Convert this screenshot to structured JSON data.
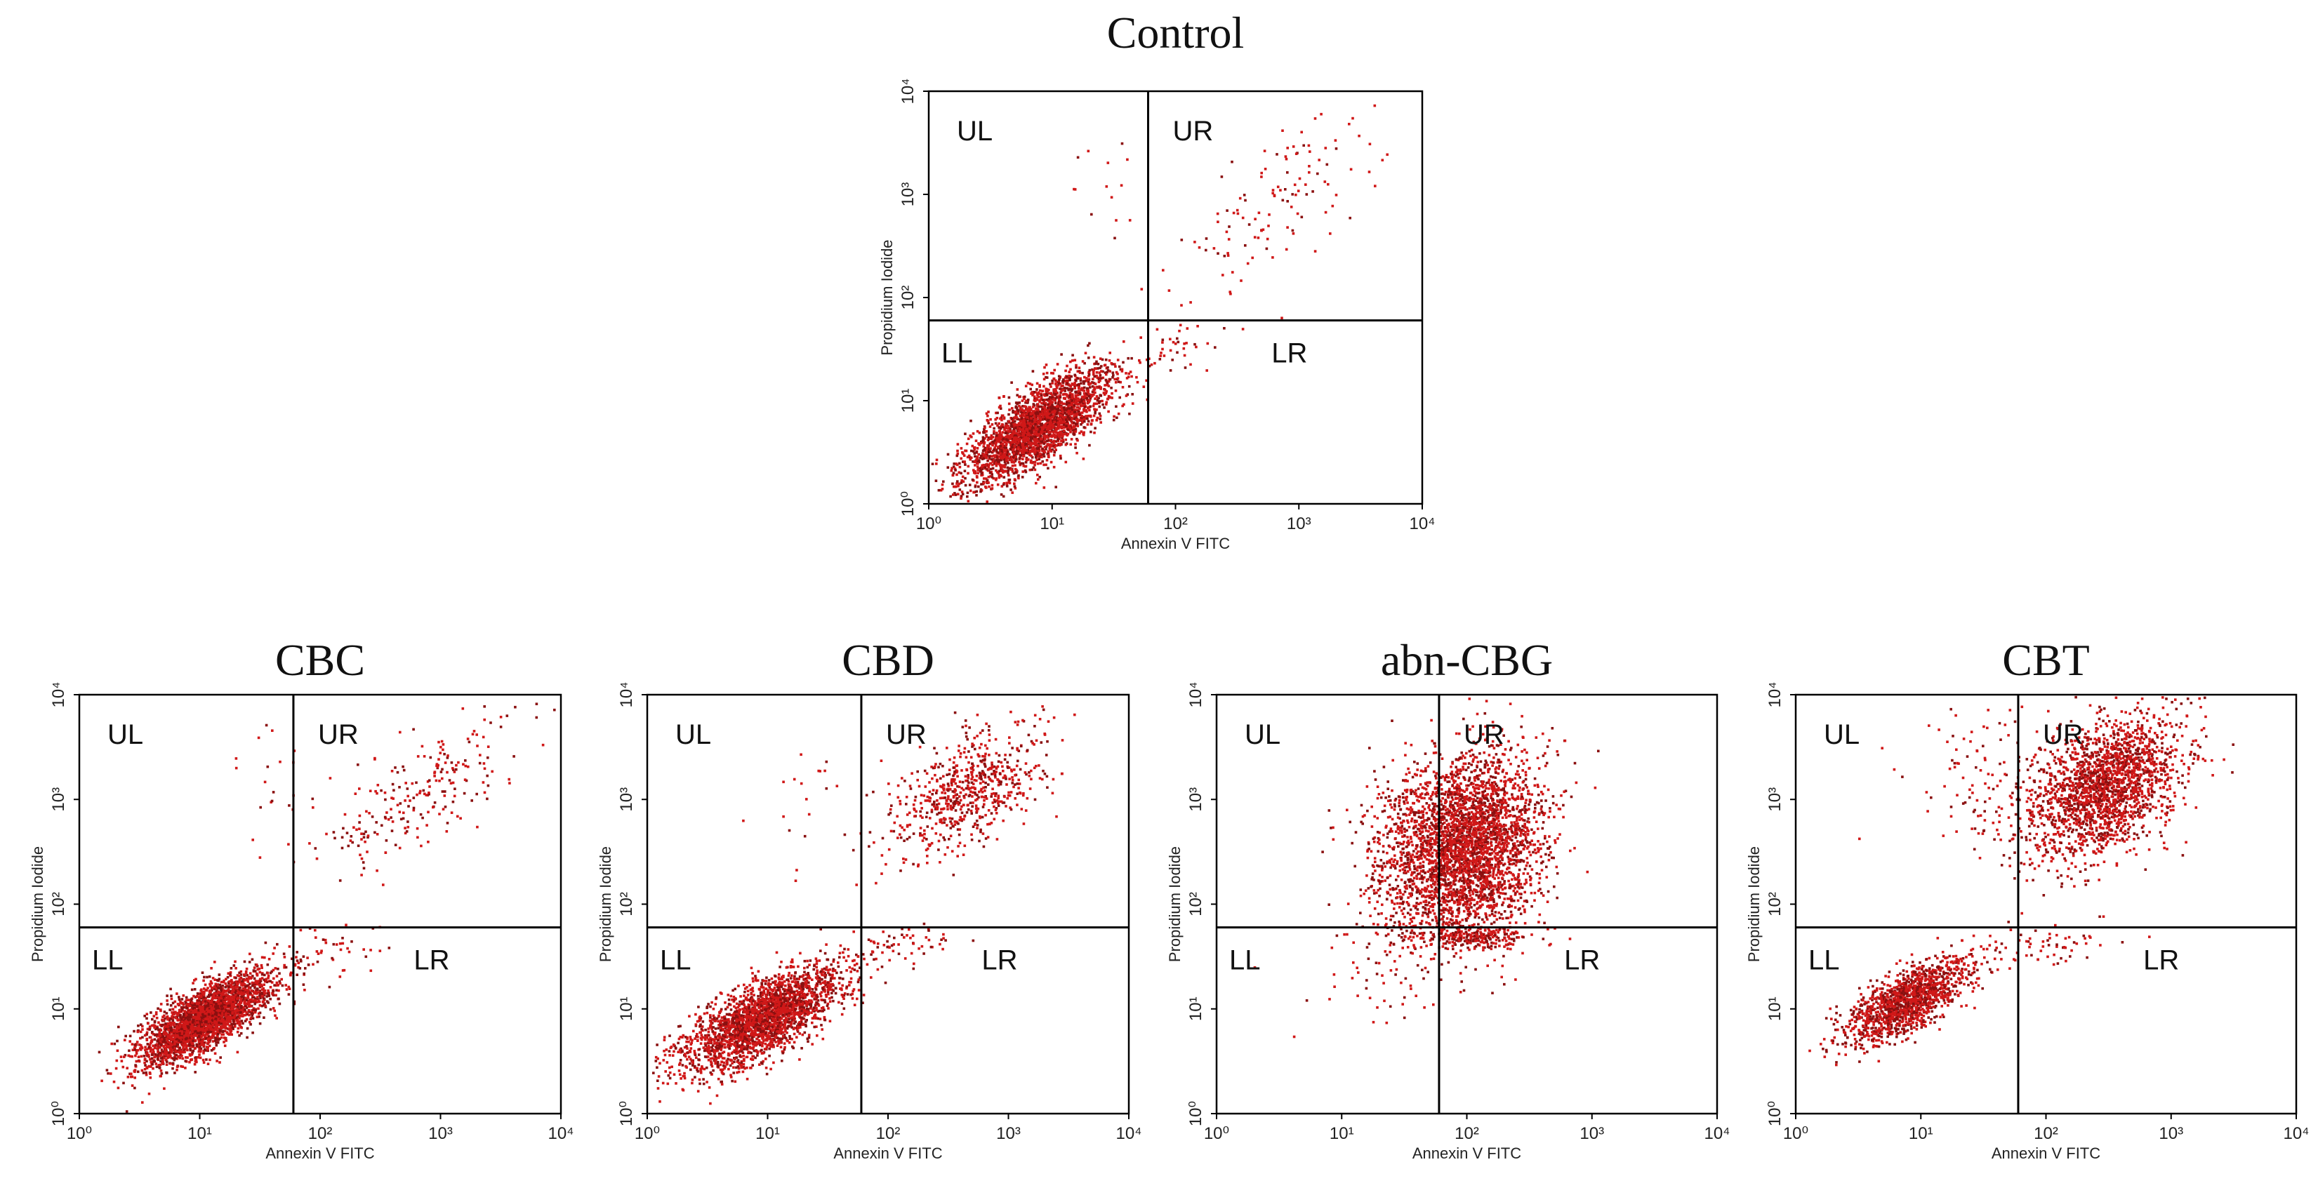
{
  "chart_data": [
    {
      "type": "scatter",
      "title": "Control",
      "xlabel": "Annexin V FITC",
      "ylabel": "Propidium Iodide",
      "xscale": "log",
      "yscale": "log",
      "xlim": [
        1,
        10000
      ],
      "ylim": [
        1,
        10000
      ],
      "xticks": [
        "10⁰",
        "10¹",
        "10²",
        "10³",
        "10⁴"
      ],
      "yticks": [
        "10⁰",
        "10¹",
        "10²",
        "10³",
        "10⁴"
      ],
      "gate": {
        "x": 60,
        "y": 60
      },
      "quadrants": [
        "UL",
        "UR",
        "LL",
        "LR"
      ],
      "populations": [
        {
          "quadrant": "LL",
          "n": 2600,
          "cx": 7.5,
          "cy": 5.5,
          "sx": 0.3,
          "sy": 0.28,
          "rho": 0.75
        },
        {
          "quadrant": "UR",
          "n": 120,
          "cx": 700,
          "cy": 900,
          "sx": 0.4,
          "sy": 0.42,
          "rho": 0.7
        },
        {
          "quadrant": "UL",
          "n": 14,
          "cx": 25,
          "cy": 1000,
          "sx": 0.2,
          "sy": 0.3,
          "rho": 0
        },
        {
          "quadrant": "LR",
          "n": 40,
          "cx": 110,
          "cy": 35,
          "sx": 0.2,
          "sy": 0.15,
          "rho": 0.5
        }
      ]
    },
    {
      "type": "scatter",
      "title": "CBC",
      "xlabel": "Annexin V FITC",
      "ylabel": "Propidium Iodide",
      "xscale": "log",
      "yscale": "log",
      "xlim": [
        1,
        10000
      ],
      "ylim": [
        1,
        10000
      ],
      "xticks": [
        "10⁰",
        "10¹",
        "10²",
        "10³",
        "10⁴"
      ],
      "yticks": [
        "10⁰",
        "10¹",
        "10²",
        "10³",
        "10⁴"
      ],
      "gate": {
        "x": 60,
        "y": 60
      },
      "quadrants": [
        "UL",
        "UR",
        "LL",
        "LR"
      ],
      "populations": [
        {
          "quadrant": "LL",
          "n": 2800,
          "cx": 11,
          "cy": 8,
          "sx": 0.28,
          "sy": 0.22,
          "rho": 0.75
        },
        {
          "quadrant": "UR",
          "n": 230,
          "cx": 700,
          "cy": 1300,
          "sx": 0.4,
          "sy": 0.35,
          "rho": 0.7
        },
        {
          "quadrant": "UL",
          "n": 20,
          "cx": 40,
          "cy": 1500,
          "sx": 0.2,
          "sy": 0.3,
          "rho": 0
        },
        {
          "quadrant": "LR",
          "n": 50,
          "cx": 120,
          "cy": 35,
          "sx": 0.25,
          "sy": 0.15,
          "rho": 0.5
        }
      ]
    },
    {
      "type": "scatter",
      "title": "CBD",
      "xlabel": "Annexin V FITC",
      "ylabel": "Propidium Iodide",
      "xscale": "log",
      "yscale": "log",
      "xlim": [
        1,
        10000
      ],
      "ylim": [
        1,
        10000
      ],
      "xticks": [
        "10⁰",
        "10¹",
        "10²",
        "10³",
        "10⁴"
      ],
      "yticks": [
        "10⁰",
        "10¹",
        "10²",
        "10³",
        "10⁴"
      ],
      "gate": {
        "x": 60,
        "y": 60
      },
      "quadrants": [
        "UL",
        "UR",
        "LL",
        "LR"
      ],
      "populations": [
        {
          "quadrant": "LL",
          "n": 2500,
          "cx": 9,
          "cy": 8,
          "sx": 0.32,
          "sy": 0.25,
          "rho": 0.7
        },
        {
          "quadrant": "UR",
          "n": 650,
          "cx": 450,
          "cy": 1200,
          "sx": 0.32,
          "sy": 0.3,
          "rho": 0.55
        },
        {
          "quadrant": "UL",
          "n": 25,
          "cx": 30,
          "cy": 1000,
          "sx": 0.3,
          "sy": 0.35,
          "rho": 0
        },
        {
          "quadrant": "LR",
          "n": 60,
          "cx": 130,
          "cy": 40,
          "sx": 0.25,
          "sy": 0.12,
          "rho": 0.5
        }
      ]
    },
    {
      "type": "scatter",
      "title": "abn-CBG",
      "xlabel": "Annexin V FITC",
      "ylabel": "Propidium Iodide",
      "xscale": "log",
      "yscale": "log",
      "xlim": [
        1,
        10000
      ],
      "ylim": [
        1,
        10000
      ],
      "xticks": [
        "10⁰",
        "10¹",
        "10²",
        "10³",
        "10⁴"
      ],
      "yticks": [
        "10⁰",
        "10¹",
        "10²",
        "10³",
        "10⁴"
      ],
      "gate": {
        "x": 60,
        "y": 60
      },
      "quadrants": [
        "UL",
        "UR",
        "LL",
        "LR"
      ],
      "populations": [
        {
          "quadrant": "UR",
          "n": 3000,
          "cx": 110,
          "cy": 350,
          "sx": 0.28,
          "sy": 0.45,
          "rho": 0.15
        },
        {
          "quadrant": "UL",
          "n": 550,
          "cx": 35,
          "cy": 300,
          "sx": 0.22,
          "sy": 0.45,
          "rho": 0.1
        },
        {
          "quadrant": "LL",
          "n": 40,
          "cx": 20,
          "cy": 25,
          "sx": 0.35,
          "sy": 0.3,
          "rho": 0.3
        },
        {
          "quadrant": "LR",
          "n": 200,
          "cx": 110,
          "cy": 48,
          "sx": 0.25,
          "sy": 0.05,
          "rho": 0
        }
      ]
    },
    {
      "type": "scatter",
      "title": "CBT",
      "xlabel": "Annexin V FITC",
      "ylabel": "Propidium Iodide",
      "xscale": "log",
      "yscale": "log",
      "xlim": [
        1,
        10000
      ],
      "ylim": [
        1,
        10000
      ],
      "xticks": [
        "10⁰",
        "10¹",
        "10²",
        "10³",
        "10⁴"
      ],
      "yticks": [
        "10⁰",
        "10¹",
        "10²",
        "10³",
        "10⁴"
      ],
      "gate": {
        "x": 60,
        "y": 60
      },
      "quadrants": [
        "UL",
        "UR",
        "LL",
        "LR"
      ],
      "populations": [
        {
          "quadrant": "LL",
          "n": 1400,
          "cx": 8,
          "cy": 12,
          "sx": 0.25,
          "sy": 0.2,
          "rho": 0.7
        },
        {
          "quadrant": "UR",
          "n": 2000,
          "cx": 300,
          "cy": 1300,
          "sx": 0.3,
          "sy": 0.35,
          "rho": 0.45
        },
        {
          "quadrant": "UL",
          "n": 120,
          "cx": 35,
          "cy": 1400,
          "sx": 0.28,
          "sy": 0.35,
          "rho": 0
        },
        {
          "quadrant": "LR",
          "n": 60,
          "cx": 120,
          "cy": 40,
          "sx": 0.25,
          "sy": 0.12,
          "rho": 0.4
        }
      ]
    }
  ],
  "style": {
    "dot_color": "#d01818",
    "dot_color_dark": "#8a1010",
    "frame_color": "#000000"
  }
}
